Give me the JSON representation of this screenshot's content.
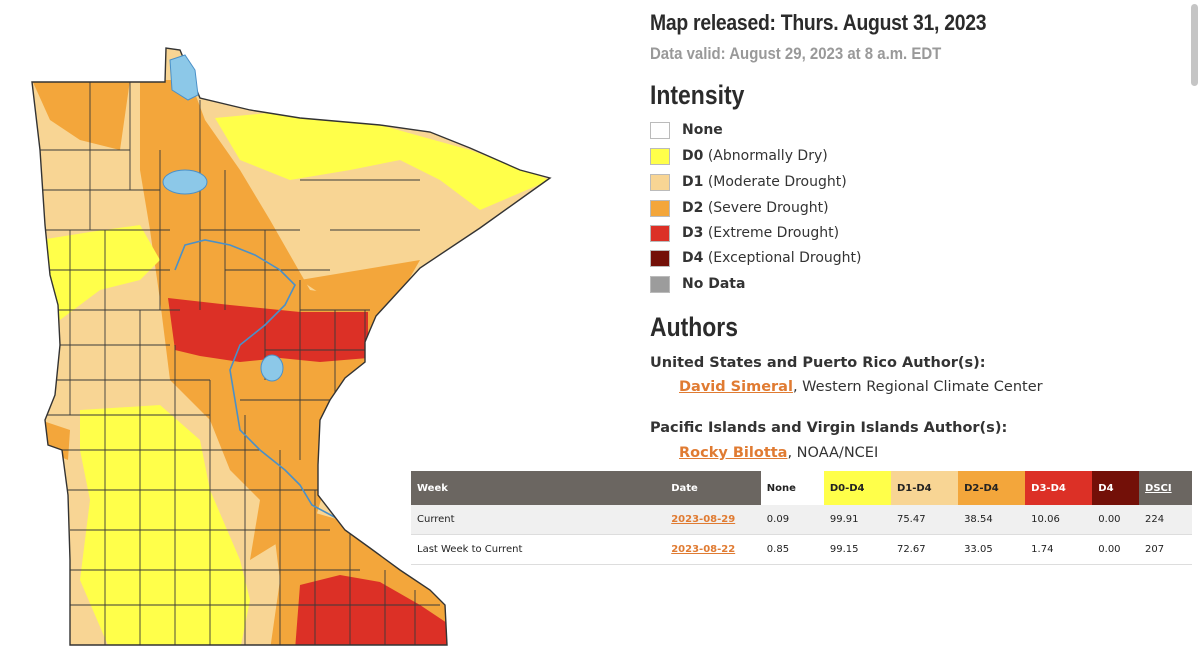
{
  "header": {
    "released": "Map released: Thurs. August 31, 2023",
    "valid": "Data valid: August 29, 2023 at 8 a.m. EDT"
  },
  "intensity": {
    "title": "Intensity",
    "items": [
      {
        "code": "None",
        "desc": "",
        "color": "#ffffff"
      },
      {
        "code": "D0",
        "desc": " (Abnormally Dry)",
        "color": "#ffff4a"
      },
      {
        "code": "D1",
        "desc": " (Moderate Drought)",
        "color": "#f8d594"
      },
      {
        "code": "D2",
        "desc": " (Severe Drought)",
        "color": "#f3a63b"
      },
      {
        "code": "D3",
        "desc": " (Extreme Drought)",
        "color": "#dc3026"
      },
      {
        "code": "D4",
        "desc": " (Exceptional Drought)",
        "color": "#731008"
      },
      {
        "code": "No Data",
        "desc": "",
        "color": "#9c9c9c"
      }
    ]
  },
  "authors": {
    "title": "Authors",
    "us_heading": "United States and Puerto Rico Author(s):",
    "us_name": "David Simeral",
    "us_org": ", Western Regional Climate Center",
    "pi_heading": "Pacific Islands and Virgin Islands Author(s):",
    "pi_name": "Rocky Bilotta",
    "pi_org": ", NOAA/NCEI"
  },
  "table": {
    "headers": [
      "Week",
      "Date",
      "None",
      "D0-D4",
      "D1-D4",
      "D2-D4",
      "D3-D4",
      "D4",
      "DSCI"
    ],
    "header_colors": [
      "#6b6661",
      "#6b6661",
      "#ffffff",
      "#ffff4a",
      "#f8d594",
      "#f3a63b",
      "#dc3026",
      "#731008",
      "#6b6661"
    ],
    "header_text_colors": [
      "#ffffff",
      "#ffffff",
      "#222222",
      "#222222",
      "#222222",
      "#222222",
      "#ffffff",
      "#ffffff",
      "#ffffff"
    ],
    "rows": [
      [
        "Current",
        "2023-08-29",
        "0.09",
        "99.91",
        "75.47",
        "38.54",
        "10.06",
        "0.00",
        "224"
      ],
      [
        "Last Week to Current",
        "2023-08-22",
        "0.85",
        "99.15",
        "72.67",
        "33.05",
        "1.74",
        "0.00",
        "207"
      ]
    ]
  },
  "map": {
    "state": "Minnesota",
    "colors": {
      "D0": "#ffff4a",
      "D1": "#f8d594",
      "D2": "#f3a63b",
      "D3": "#dc3026",
      "water": "#8cc8e8",
      "border": "#333333"
    }
  }
}
